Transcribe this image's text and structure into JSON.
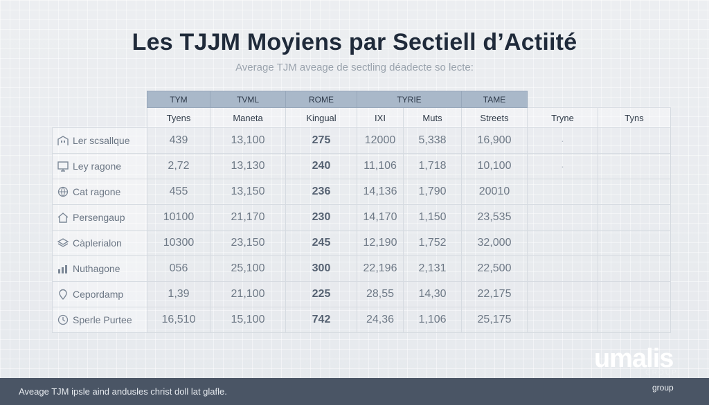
{
  "header": {
    "title": "Les TJJM Moyiens par Sectiell d’Actiité",
    "subtitle": "Average TJM aveage de sectling déadecte so lecte:"
  },
  "chart_data": {
    "type": "table",
    "group_headers": [
      "TYM",
      "TVML",
      "ROME",
      "TYRIE",
      "TAME"
    ],
    "columns": [
      "Tyens",
      "Maneta",
      "Kingual",
      "IXI",
      "Muts",
      "Streets",
      "Tryne",
      "Tyns"
    ],
    "rows": [
      {
        "label": "Ler scsallque",
        "icon": "building-icon",
        "values": [
          "439",
          "13,100",
          "275",
          "12000",
          "5,338",
          "16,900",
          "·",
          ""
        ]
      },
      {
        "label": "Ley ragone",
        "icon": "monitor-icon",
        "values": [
          "2,72",
          "13,130",
          "240",
          "11,106",
          "1,718",
          "10,100",
          "·",
          ""
        ]
      },
      {
        "label": "Cat ragone",
        "icon": "globe-icon",
        "values": [
          "455",
          "13,150",
          "236",
          "14,136",
          "1,790",
          "20010",
          "",
          ""
        ]
      },
      {
        "label": "Persengaup",
        "icon": "house-icon",
        "values": [
          "10100",
          "21,170",
          "230",
          "14,170",
          "1,150",
          "23,535",
          "",
          ""
        ]
      },
      {
        "label": "Càplerialon",
        "icon": "layers-icon",
        "values": [
          "10300",
          "23,150",
          "245",
          "12,190",
          "1,752",
          "32,000",
          "",
          ""
        ]
      },
      {
        "label": "Nuthagone",
        "icon": "chart-icon",
        "values": [
          "056",
          "25,100",
          "300",
          "22,196",
          "2,131",
          "22,500",
          "",
          ""
        ]
      },
      {
        "label": "Cepordamp",
        "icon": "pin-icon",
        "values": [
          "1,39",
          "21,100",
          "225",
          "28,55",
          "14,30",
          "22,175",
          "",
          ""
        ]
      },
      {
        "label": "Sperle Purtee",
        "icon": "clock-icon",
        "values": [
          "16,510",
          "15,100",
          "742",
          "24,36",
          "1,106",
          "25,175",
          "",
          ""
        ]
      }
    ]
  },
  "footer": {
    "caption": "Aveage TJM ipsle aind andusles christ doll lat glafle."
  },
  "brand": {
    "name": "umalis",
    "sub": "GROUP",
    "tag": "group"
  }
}
